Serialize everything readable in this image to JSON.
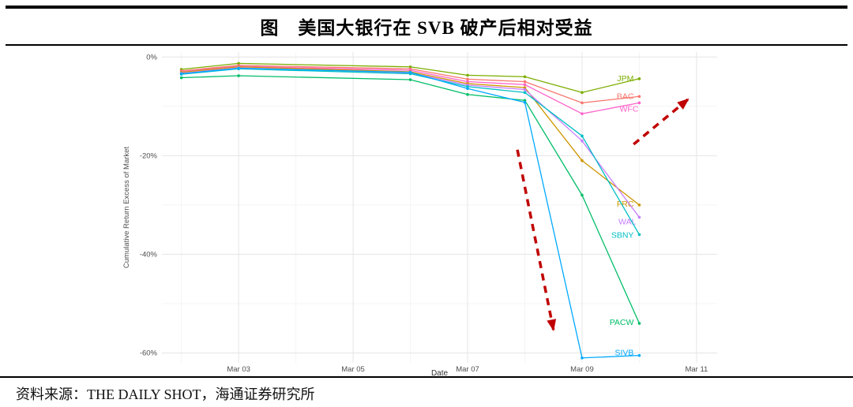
{
  "header": {
    "title": "图　美国大银行在 SVB 破产后相对受益"
  },
  "footer": {
    "source": "资料来源：THE DAILY SHOT，海通证券研究所"
  },
  "chart_data": {
    "type": "line",
    "title": "图　美国大银行在 SVB 破产后相对受益",
    "xlabel": "Date",
    "ylabel": "Cumulative Return Excess of Market",
    "x": [
      2,
      3,
      6,
      7,
      8,
      9,
      10
    ],
    "x_ticks": [
      {
        "value": 3,
        "label": "Mar 03"
      },
      {
        "value": 5,
        "label": "Mar 05"
      },
      {
        "value": 7,
        "label": "Mar 07"
      },
      {
        "value": 9,
        "label": "Mar 09"
      },
      {
        "value": 11,
        "label": "Mar 11"
      }
    ],
    "y_ticks": [
      {
        "value": 0,
        "label": "0%"
      },
      {
        "value": -20,
        "label": "-20%"
      },
      {
        "value": -40,
        "label": "-40%"
      },
      {
        "value": -60,
        "label": "-60%"
      }
    ],
    "x_minor": [
      2,
      4,
      6,
      8,
      10
    ],
    "y_minor": [
      -10,
      -30,
      -50
    ],
    "xlim": [
      1.66,
      11.36
    ],
    "ylim": [
      -62,
      1
    ],
    "grid": true,
    "legend_position": "inline-labels",
    "series": [
      {
        "name": "JPM",
        "color": "#7CAE00",
        "values": [
          -2.5,
          -1.3,
          -2.0,
          -3.7,
          -4.0,
          -7.2,
          -4.4
        ],
        "label_dx": -7,
        "label_dy": 3
      },
      {
        "name": "BAC",
        "color": "#F8766D",
        "values": [
          -2.8,
          -1.7,
          -2.4,
          -4.5,
          -5.0,
          -9.3,
          -8.0
        ],
        "label_dx": -7,
        "label_dy": 3
      },
      {
        "name": "WFC",
        "color": "#FF61CC",
        "values": [
          -3.0,
          -1.9,
          -2.7,
          -5.0,
          -5.6,
          -11.5,
          -9.3
        ],
        "label_dx": -1,
        "label_dy": 11
      },
      {
        "name": "FRC",
        "color": "#CD9600",
        "values": [
          -3.1,
          -2.0,
          -3.0,
          -5.4,
          -6.2,
          -21.0,
          -30.0
        ],
        "label_dx": -7,
        "label_dy": 2
      },
      {
        "name": "WAL",
        "color": "#C77CFF",
        "values": [
          -3.3,
          -2.2,
          -3.2,
          -5.7,
          -6.6,
          -17.0,
          -32.5
        ],
        "label_dx": -4,
        "label_dy": 9
      },
      {
        "name": "SBNY",
        "color": "#00BFC4",
        "values": [
          -3.5,
          -2.4,
          -3.4,
          -6.0,
          -7.2,
          -16.0,
          -36.0
        ],
        "label_dx": -7,
        "label_dy": 4
      },
      {
        "name": "PACW",
        "color": "#00BE67",
        "values": [
          -4.2,
          -3.8,
          -4.6,
          -7.6,
          -8.8,
          -28.0,
          -54.0
        ],
        "label_dx": -7,
        "label_dy": 2
      },
      {
        "name": "SIVB",
        "color": "#00A9FF",
        "values": [
          -3.4,
          -2.3,
          -3.1,
          -6.4,
          -9.2,
          -61.0,
          -60.5
        ],
        "label_dx": -7,
        "label_dy": 0
      }
    ],
    "annotations": {
      "arrow_color": "#C00000",
      "arrows": [
        {
          "name": "crash-arrow-down",
          "from": [
            7.87,
            -18.8
          ],
          "to": [
            8.5,
            -55.3
          ]
        },
        {
          "name": "rebound-arrow-up",
          "from": [
            9.9,
            -17.7
          ],
          "to": [
            10.85,
            -8.6
          ]
        }
      ]
    }
  }
}
